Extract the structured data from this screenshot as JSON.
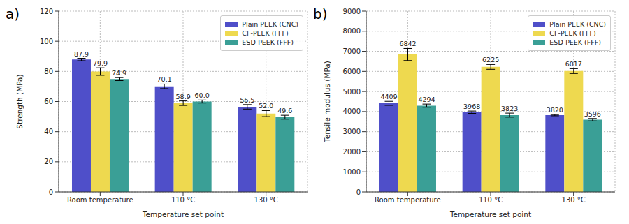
{
  "chart_data": [
    {
      "type": "bar",
      "title": "a)",
      "x_label": "Temperature set point",
      "y_label": "Strength (MPa)",
      "categories": [
        "Room temperature",
        "110 °C",
        "130 °C"
      ],
      "series": [
        {
          "name": "Plain PEEK (CNC)",
          "color": "#4f4fc9",
          "values": [
            87.9,
            70.1,
            56.5
          ],
          "value_labels": [
            "87.9",
            "70.1",
            "56.5"
          ],
          "errors": [
            0.8,
            1.5,
            1.5
          ]
        },
        {
          "name": "CF-PEEK (FFF)",
          "color": "#eed94f",
          "values": [
            79.9,
            58.9,
            52.0
          ],
          "value_labels": [
            "79.9",
            "58.9",
            "52.0"
          ],
          "errors": [
            2.5,
            1.5,
            2.0
          ]
        },
        {
          "name": "ESD-PEEK (FFF)",
          "color": "#3a9f96",
          "values": [
            74.9,
            60.0,
            49.6
          ],
          "value_labels": [
            "74.9",
            "60.0",
            "49.6"
          ],
          "errors": [
            1.0,
            1.0,
            1.3
          ]
        }
      ],
      "ylim": [
        0,
        120
      ],
      "yticks": [
        0,
        20,
        40,
        60,
        80,
        100,
        120
      ],
      "grid": true,
      "legend": "upper right",
      "data_labels": true
    },
    {
      "type": "bar",
      "title": "b)",
      "x_label": "Temperature set point",
      "y_label": "Tensile modulus (MPa)",
      "categories": [
        "Room temperature",
        "110 °C",
        "130 °C"
      ],
      "series": [
        {
          "name": "Plain PEEK (CNC)",
          "color": "#4f4fc9",
          "values": [
            4409,
            3968,
            3820
          ],
          "errors": [
            100,
            60,
            30
          ]
        },
        {
          "name": "CF-PEEK (FFF)",
          "color": "#eed94f",
          "values": [
            6842,
            6225,
            6017
          ],
          "errors": [
            300,
            120,
            120
          ]
        },
        {
          "name": "ESD-PEEK (FFF)",
          "color": "#3a9f96",
          "values": [
            4294,
            3823,
            3596
          ],
          "errors": [
            80,
            100,
            60
          ]
        }
      ],
      "ylim": [
        0,
        9000
      ],
      "yticks": [
        0,
        1000,
        2000,
        3000,
        4000,
        5000,
        6000,
        7000,
        8000,
        9000
      ],
      "grid": true,
      "legend": "upper right",
      "data_labels": true
    }
  ]
}
